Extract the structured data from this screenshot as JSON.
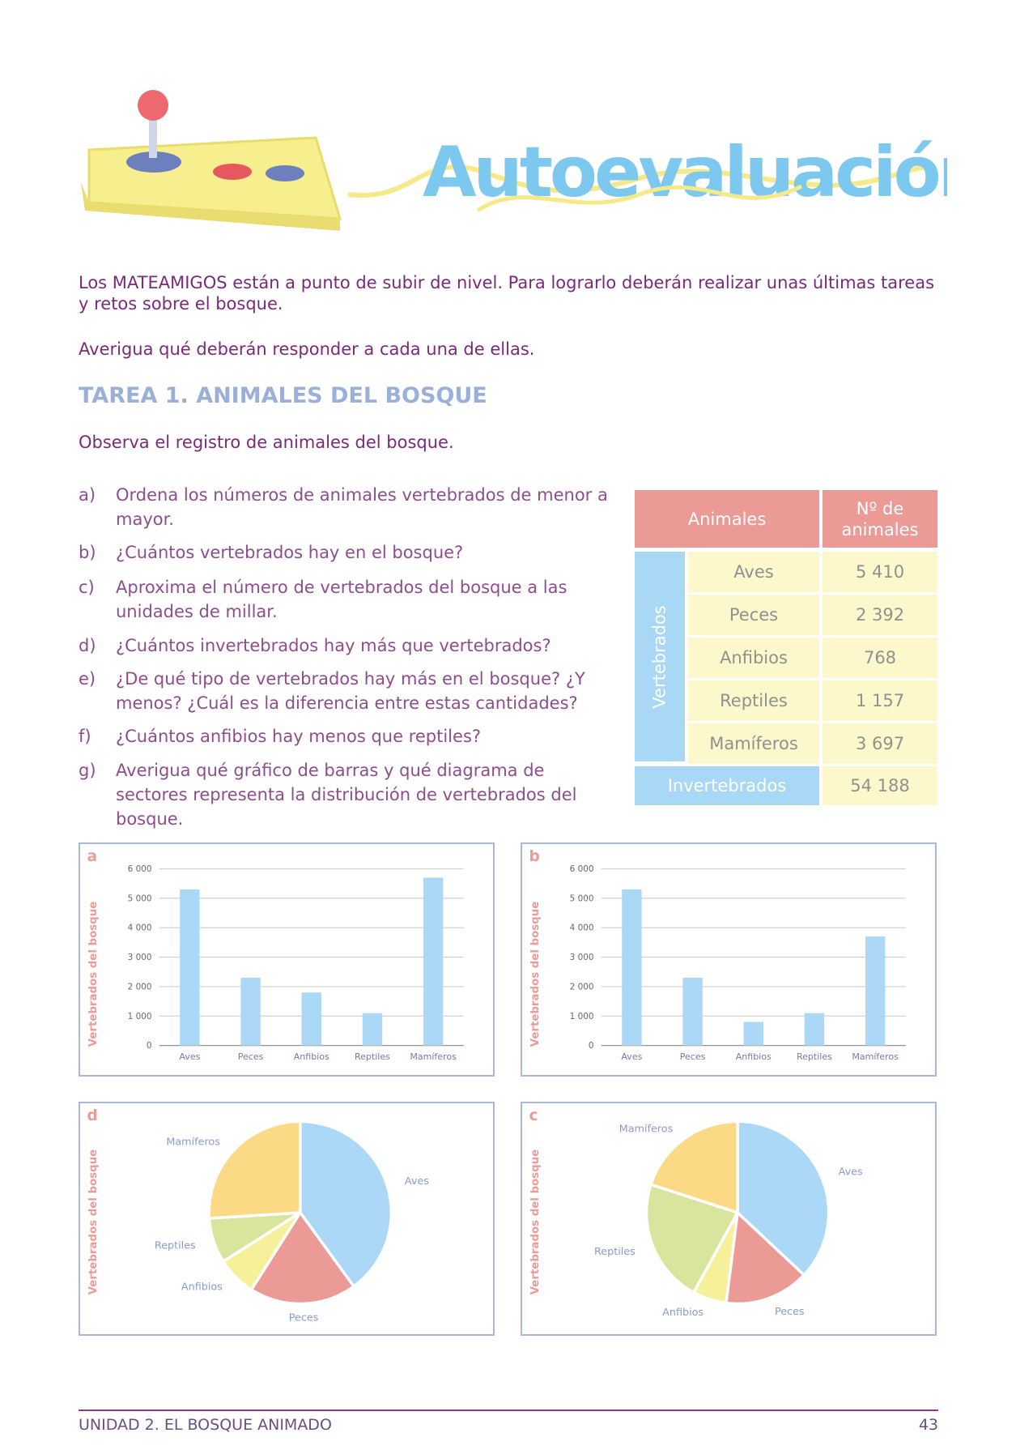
{
  "header": {
    "title": "Autoevaluación"
  },
  "intro": [
    "Los MATEAMIGOS están a punto de subir de nivel. Para lograrlo deberán realizar unas últimas tareas y retos sobre el bosque.",
    "Averigua qué deberán responder a cada una de ellas."
  ],
  "task": {
    "heading": "TAREA 1. ANIMALES DEL BOSQUE",
    "instruction": "Observa el registro de animales del bosque."
  },
  "questions": [
    {
      "letter": "a)",
      "text": "Ordena los números de animales vertebrados de menor a mayor."
    },
    {
      "letter": "b)",
      "text": "¿Cuántos vertebrados hay en el bosque?"
    },
    {
      "letter": "c)",
      "text": "Aproxima el número de vertebrados del bosque a las unidades de millar."
    },
    {
      "letter": "d)",
      "text": "¿Cuántos invertebrados hay más que vertebrados?"
    },
    {
      "letter": "e)",
      "text": "¿De qué tipo de vertebrados hay más en el bosque? ¿Y menos? ¿Cuál es la diferencia entre estas cantidades?"
    },
    {
      "letter": "f)",
      "text": "¿Cuántos anfibios hay menos que reptiles?"
    },
    {
      "letter": "g)",
      "text": "Averigua qué gráfico de barras y qué diagrama de sectores representa la distribución de vertebrados del bosque."
    }
  ],
  "table": {
    "header": [
      "Animales",
      "Nº de animales"
    ],
    "group": "Vertebrados",
    "rows": [
      [
        "Aves",
        "5 410"
      ],
      [
        "Peces",
        "2 392"
      ],
      [
        "Anfibios",
        "768"
      ],
      [
        "Reptiles",
        "1 157"
      ],
      [
        "Mamíferos",
        "3 697"
      ]
    ],
    "last": [
      "Invertebrados",
      "54 188"
    ]
  },
  "chart_data": [
    {
      "type": "bar",
      "title": "a",
      "y_label": "Vertebrados del bosque",
      "categories": [
        "Aves",
        "Peces",
        "Anfibios",
        "Reptiles",
        "Mamíferos"
      ],
      "values": [
        5300,
        2300,
        1800,
        1100,
        5700
      ],
      "color": "#aad8f6",
      "ylim": [
        0,
        6000
      ],
      "yticks": [
        0,
        {
          "value": 1000,
          "label": "1 000"
        },
        {
          "value": 2000,
          "label": "2 000"
        },
        {
          "value": 3000,
          "label": "3 000"
        },
        {
          "value": 4000,
          "label": "4 000"
        },
        {
          "value": 5000,
          "label": "5 000"
        },
        {
          "value": 6000,
          "label": "6 000"
        }
      ],
      "grid": true
    },
    {
      "type": "bar",
      "title": "b",
      "y_label": "Vertebrados del bosque",
      "categories": [
        "Aves",
        "Peces",
        "Anfibios",
        "Reptiles",
        "Mamíferos"
      ],
      "values": [
        5300,
        2300,
        800,
        1100,
        3700
      ],
      "color": "#aad8f6",
      "ylim": [
        0,
        6000
      ],
      "yticks": [
        0,
        {
          "value": 1000,
          "label": "1 000"
        },
        {
          "value": 2000,
          "label": "2 000"
        },
        {
          "value": 3000,
          "label": "3 000"
        },
        {
          "value": 4000,
          "label": "4 000"
        },
        {
          "value": 5000,
          "label": "5 000"
        },
        {
          "value": 6000,
          "label": "6 000"
        }
      ],
      "grid": true
    },
    {
      "type": "pie",
      "title": "d",
      "y_label": "Vertebrados del bosque",
      "categories": [
        "Aves",
        "Peces",
        "Anfibios",
        "Reptiles",
        "Mamíferos"
      ],
      "values": [
        40,
        19,
        7,
        8,
        26
      ],
      "colors": [
        "#aad8f6",
        "#ec9a96",
        "#f7f09a",
        "#d9e59c",
        "#fbd985"
      ]
    },
    {
      "type": "pie",
      "title": "c",
      "y_label": "Vertebrados del bosque",
      "categories": [
        "Aves",
        "Peces",
        "Anfibios",
        "Reptiles",
        "Mamíferos"
      ],
      "values": [
        37,
        15,
        6,
        22,
        20
      ],
      "colors": [
        "#aad8f6",
        "#ec9a96",
        "#f7f09a",
        "#d9e59c",
        "#fbd985"
      ]
    }
  ],
  "footer": {
    "left": "UNIDAD 2. EL BOSQUE ANIMADO",
    "page": "43"
  }
}
